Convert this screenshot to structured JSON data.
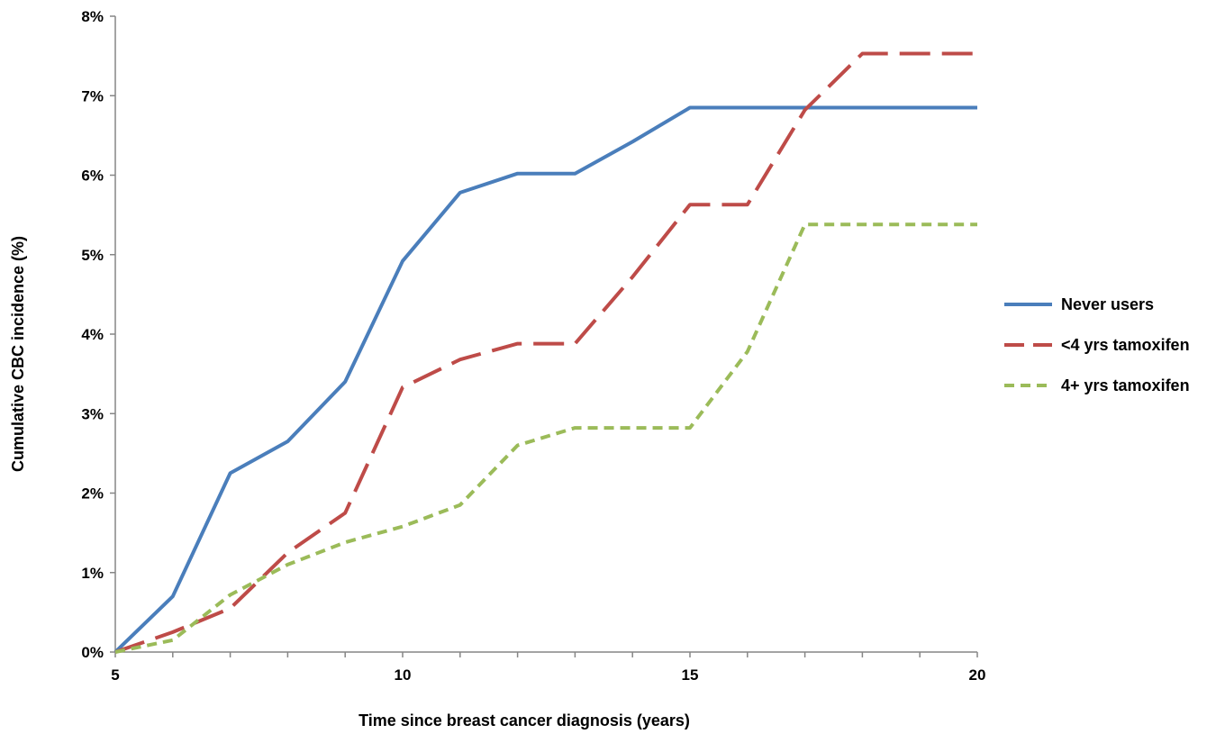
{
  "chart_data": {
    "type": "line",
    "title": "",
    "xlabel": "Time since breast cancer diagnosis (years)",
    "ylabel": "Cumulative CBC incidence (%)",
    "xlim": [
      5,
      20
    ],
    "ylim": [
      0,
      8
    ],
    "x_ticks": [
      5,
      10,
      15,
      20
    ],
    "x_tick_labels": [
      "5",
      "10",
      "15",
      "20"
    ],
    "y_ticks": [
      0,
      1,
      2,
      3,
      4,
      5,
      6,
      7,
      8
    ],
    "y_tick_labels": [
      "0%",
      "1%",
      "2%",
      "3%",
      "4%",
      "5%",
      "6%",
      "7%",
      "8%"
    ],
    "grid": false,
    "legend_position": "right",
    "series": [
      {
        "name": "Never users",
        "color": "#4a7ebb",
        "dash": "solid",
        "x": [
          5,
          6,
          7,
          8,
          9,
          10,
          11,
          12,
          13,
          14,
          15,
          16,
          17,
          18,
          19,
          20
        ],
        "y": [
          0,
          0.7,
          2.25,
          2.65,
          3.4,
          4.92,
          5.78,
          6.02,
          6.02,
          6.42,
          6.85,
          6.85,
          6.85,
          6.85,
          6.85,
          6.85
        ]
      },
      {
        "name": "<4 yrs tamoxifen",
        "color": "#be4b48",
        "dash": "long-dash",
        "x": [
          5,
          6,
          7,
          8,
          9,
          10,
          11,
          12,
          13,
          14,
          15,
          16,
          17,
          18,
          19,
          20
        ],
        "y": [
          0,
          0.25,
          0.55,
          1.25,
          1.75,
          3.33,
          3.68,
          3.88,
          3.88,
          4.72,
          5.63,
          5.63,
          6.82,
          7.53,
          7.53,
          7.53
        ]
      },
      {
        "name": "4+ yrs tamoxifen",
        "color": "#9bbb59",
        "dash": "short-dash",
        "x": [
          5,
          6,
          7,
          8,
          9,
          10,
          11,
          12,
          13,
          14,
          15,
          16,
          17,
          18,
          19,
          20
        ],
        "y": [
          0,
          0.15,
          0.72,
          1.1,
          1.38,
          1.58,
          1.85,
          2.6,
          2.82,
          2.82,
          2.82,
          3.78,
          5.38,
          5.38,
          5.38,
          5.38
        ]
      }
    ]
  }
}
